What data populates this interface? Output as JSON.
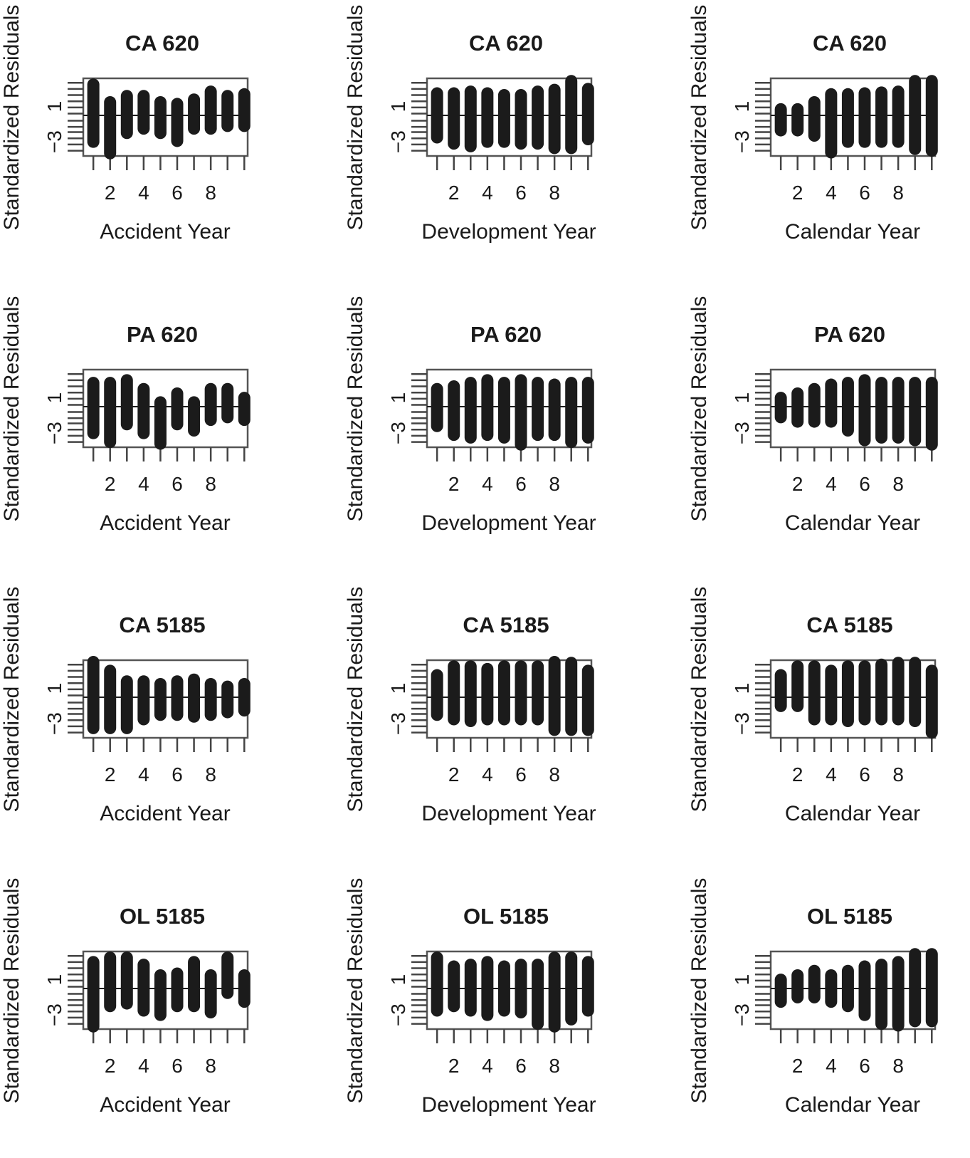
{
  "figure": {
    "ylabel": "Standardized Residuals",
    "yticks": [
      1,
      -3
    ],
    "ytick_labels": [
      "1",
      "−3"
    ],
    "xticks": [
      2,
      4,
      6,
      8
    ],
    "xtick_labels": [
      "2",
      "4",
      "6",
      "8"
    ],
    "xlabels": [
      "Accident Year",
      "Development Year",
      "Calendar Year"
    ],
    "row_titles": [
      "CA 620",
      "PA 620",
      "CA 5185",
      "OL 5185"
    ],
    "colors": {
      "bar": "#1b1b1b",
      "axis": "#444444",
      "box": "#555555"
    }
  },
  "chart_data": [
    {
      "type": "scatter",
      "title": "CA 620",
      "xlabel": "Accident Year",
      "ylabel": "Standardized Residuals",
      "xlim": [
        0.4,
        10.2
      ],
      "ylim": [
        -4.6,
        4.2
      ],
      "grid": false,
      "series": [
        {
          "name": "",
          "x": [
            1,
            2,
            3,
            4,
            5,
            6,
            7,
            8,
            9,
            10
          ],
          "ymin": [
            -3.0,
            -4.3,
            -2.0,
            -1.5,
            -2.0,
            -2.9,
            -1.5,
            -1.5,
            -1.2,
            -1.2
          ],
          "ymax": [
            3.5,
            1.5,
            2.2,
            2.2,
            1.5,
            1.3,
            1.8,
            2.7,
            2.2,
            2.4
          ]
        }
      ]
    },
    {
      "type": "scatter",
      "title": "CA 620",
      "xlabel": "Development Year",
      "ylabel": "Standardized Residuals",
      "xlim": [
        0.4,
        10.2
      ],
      "ylim": [
        -4.6,
        4.2
      ],
      "grid": false,
      "series": [
        {
          "name": "",
          "x": [
            1,
            2,
            3,
            4,
            5,
            6,
            7,
            8,
            9,
            10
          ],
          "ymin": [
            -2.5,
            -3.2,
            -3.5,
            -3.0,
            -3.0,
            -3.2,
            -3.2,
            -3.7,
            -3.7,
            -2.7
          ],
          "ymax": [
            2.5,
            2.5,
            2.7,
            2.5,
            2.3,
            2.3,
            2.7,
            2.9,
            3.9,
            3.0
          ]
        }
      ]
    },
    {
      "type": "scatter",
      "title": "CA 620",
      "xlabel": "Calendar Year",
      "ylabel": "Standardized Residuals",
      "xlim": [
        0.4,
        10.2
      ],
      "ylim": [
        -4.6,
        4.2
      ],
      "grid": false,
      "series": [
        {
          "name": "",
          "x": [
            1,
            2,
            3,
            4,
            5,
            6,
            7,
            8,
            9,
            10
          ],
          "ymin": [
            -1.7,
            -1.7,
            -2.3,
            -4.2,
            -3.0,
            -3.0,
            -3.0,
            -3.0,
            -3.8,
            -4.0
          ],
          "ymax": [
            0.7,
            0.7,
            1.5,
            2.4,
            2.4,
            2.5,
            2.6,
            2.7,
            3.9,
            3.9
          ]
        }
      ]
    },
    {
      "type": "scatter",
      "title": "PA 620",
      "xlabel": "Accident Year",
      "ylabel": "Standardized Residuals",
      "xlim": [
        0.4,
        10.2
      ],
      "ylim": [
        -4.6,
        4.2
      ],
      "grid": false,
      "series": [
        {
          "name": "",
          "x": [
            1,
            2,
            3,
            4,
            5,
            6,
            7,
            8,
            9,
            10
          ],
          "ymin": [
            -3.0,
            -4.0,
            -2.0,
            -3.0,
            -4.2,
            -2.0,
            -2.7,
            -1.5,
            -1.2,
            -1.5
          ],
          "ymax": [
            2.7,
            2.7,
            3.0,
            2.0,
            0.5,
            1.5,
            0.5,
            2.0,
            2.0,
            1.0
          ]
        }
      ]
    },
    {
      "type": "scatter",
      "title": "PA 620",
      "xlabel": "Development Year",
      "ylabel": "Standardized Residuals",
      "xlim": [
        0.4,
        10.2
      ],
      "ylim": [
        -4.6,
        4.2
      ],
      "grid": false,
      "series": [
        {
          "name": "",
          "x": [
            1,
            2,
            3,
            4,
            5,
            6,
            7,
            8,
            9,
            10
          ],
          "ymin": [
            -2.2,
            -3.2,
            -3.5,
            -3.2,
            -3.5,
            -4.3,
            -3.2,
            -3.2,
            -4.0,
            -3.5
          ],
          "ymax": [
            2.0,
            2.3,
            2.7,
            3.0,
            2.7,
            3.0,
            2.7,
            2.5,
            2.7,
            2.7
          ]
        }
      ]
    },
    {
      "type": "scatter",
      "title": "PA 620",
      "xlabel": "Calendar Year",
      "ylabel": "Standardized Residuals",
      "xlim": [
        0.4,
        10.2
      ],
      "ylim": [
        -4.6,
        4.2
      ],
      "grid": false,
      "series": [
        {
          "name": "",
          "x": [
            1,
            2,
            3,
            4,
            5,
            6,
            7,
            8,
            9,
            10
          ],
          "ymin": [
            -1.2,
            -1.7,
            -1.7,
            -1.7,
            -2.7,
            -3.8,
            -3.5,
            -3.5,
            -3.8,
            -4.3
          ],
          "ymax": [
            1.0,
            1.5,
            2.0,
            2.5,
            2.7,
            3.0,
            2.7,
            2.7,
            2.7,
            2.7
          ]
        }
      ]
    },
    {
      "type": "scatter",
      "title": "CA 5185",
      "xlabel": "Accident Year",
      "ylabel": "Standardized Residuals",
      "xlim": [
        0.4,
        10.2
      ],
      "ylim": [
        -4.6,
        4.2
      ],
      "grid": false,
      "series": [
        {
          "name": "",
          "x": [
            1,
            2,
            3,
            4,
            5,
            6,
            7,
            8,
            9,
            10
          ],
          "ymin": [
            -3.5,
            -3.5,
            -3.5,
            -2.5,
            -2.0,
            -2.0,
            -2.2,
            -2.0,
            -1.7,
            -1.5
          ],
          "ymax": [
            4.0,
            3.0,
            1.8,
            1.8,
            1.5,
            1.8,
            2.0,
            1.5,
            1.2,
            1.5
          ]
        }
      ]
    },
    {
      "type": "scatter",
      "title": "CA 5185",
      "xlabel": "Development Year",
      "ylabel": "Standardized Residuals",
      "xlim": [
        0.4,
        10.2
      ],
      "ylim": [
        -4.6,
        4.2
      ],
      "grid": false,
      "series": [
        {
          "name": "",
          "x": [
            1,
            2,
            3,
            4,
            5,
            6,
            7,
            8,
            9,
            10
          ],
          "ymin": [
            -2.0,
            -2.5,
            -2.7,
            -2.5,
            -2.5,
            -2.5,
            -2.5,
            -3.7,
            -3.7,
            -3.7
          ],
          "ymax": [
            2.5,
            3.5,
            3.5,
            3.2,
            3.5,
            3.5,
            3.5,
            4.0,
            3.9,
            3.0
          ]
        }
      ]
    },
    {
      "type": "scatter",
      "title": "CA 5185",
      "xlabel": "Calendar Year",
      "ylabel": "Standardized Residuals",
      "xlim": [
        0.4,
        10.2
      ],
      "ylim": [
        -4.6,
        4.2
      ],
      "grid": false,
      "series": [
        {
          "name": "",
          "x": [
            1,
            2,
            3,
            4,
            5,
            6,
            7,
            8,
            9,
            10
          ],
          "ymin": [
            -1.0,
            -1.0,
            -2.5,
            -2.5,
            -2.7,
            -2.5,
            -2.5,
            -2.5,
            -2.7,
            -4.0
          ],
          "ymax": [
            2.5,
            3.5,
            3.5,
            3.0,
            3.5,
            3.5,
            3.7,
            3.9,
            3.9,
            3.0
          ]
        }
      ]
    },
    {
      "type": "scatter",
      "title": "OL 5185",
      "xlabel": "Accident Year",
      "ylabel": "Standardized Residuals",
      "xlim": [
        0.4,
        10.2
      ],
      "ylim": [
        -4.6,
        4.2
      ],
      "grid": false,
      "series": [
        {
          "name": "",
          "x": [
            1,
            2,
            3,
            4,
            5,
            6,
            7,
            8,
            9,
            10
          ],
          "ymin": [
            -4.3,
            -2.0,
            -1.7,
            -2.5,
            -3.0,
            -2.0,
            -2.0,
            -2.7,
            -0.5,
            -1.5
          ],
          "ymax": [
            3.0,
            3.5,
            3.5,
            2.7,
            1.5,
            1.7,
            3.0,
            1.5,
            3.5,
            1.5
          ]
        }
      ]
    },
    {
      "type": "scatter",
      "title": "OL 5185",
      "xlabel": "Development Year",
      "ylabel": "Standardized Residuals",
      "xlim": [
        0.4,
        10.2
      ],
      "ylim": [
        -4.6,
        4.2
      ],
      "grid": false,
      "series": [
        {
          "name": "",
          "x": [
            1,
            2,
            3,
            4,
            5,
            6,
            7,
            8,
            9,
            10
          ],
          "ymin": [
            -2.5,
            -2.0,
            -2.5,
            -3.0,
            -2.5,
            -2.7,
            -4.0,
            -4.3,
            -3.5,
            -2.5
          ],
          "ymax": [
            3.5,
            2.5,
            2.7,
            3.0,
            2.5,
            2.7,
            2.7,
            3.5,
            3.5,
            3.0
          ]
        }
      ]
    },
    {
      "type": "scatter",
      "title": "OL 5185",
      "xlabel": "Calendar Year",
      "ylabel": "Standardized Residuals",
      "xlim": [
        0.4,
        10.2
      ],
      "ylim": [
        -4.6,
        4.2
      ],
      "grid": false,
      "series": [
        {
          "name": "",
          "x": [
            1,
            2,
            3,
            4,
            5,
            6,
            7,
            8,
            9,
            10
          ],
          "ymin": [
            -1.5,
            -1.0,
            -1.0,
            -1.5,
            -2.0,
            -3.0,
            -4.0,
            -4.2,
            -3.7,
            -3.7
          ],
          "ymax": [
            1.0,
            1.5,
            2.0,
            1.5,
            2.0,
            2.5,
            2.7,
            3.0,
            3.9,
            3.9
          ]
        }
      ]
    }
  ]
}
